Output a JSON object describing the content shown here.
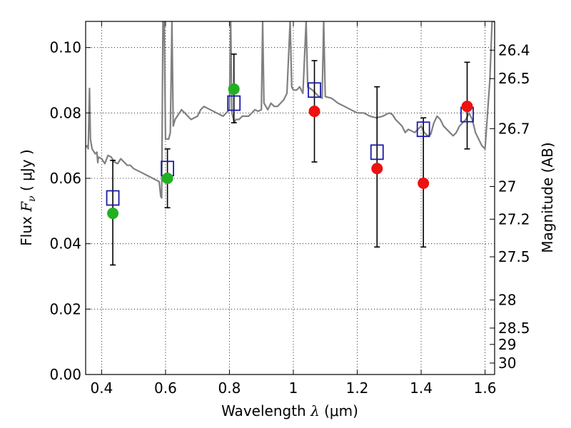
{
  "chart_data": {
    "type": "scatter",
    "title": "",
    "xlabel": {
      "prefix": "Wavelength",
      "symbol": "λ",
      "unit": "(μm)"
    },
    "ylabel": {
      "prefix": "Flux",
      "symbol": "F",
      "subscript": "ν",
      "unit": "( μJy )"
    },
    "y2label": "Magnitude (AB)",
    "xlim": [
      0.35,
      1.63
    ],
    "ylim": [
      0.0,
      0.108
    ],
    "grid": true,
    "x_ticks": [
      {
        "value": 0.4,
        "label": "0.4"
      },
      {
        "value": 0.6,
        "label": "0.6"
      },
      {
        "value": 0.8,
        "label": "0.8"
      },
      {
        "value": 1.0,
        "label": "1"
      },
      {
        "value": 1.2,
        "label": "1.2"
      },
      {
        "value": 1.4,
        "label": "1.4"
      },
      {
        "value": 1.6,
        "label": "1.6"
      }
    ],
    "y_ticks": [
      {
        "value": 0.0,
        "label": "0.00"
      },
      {
        "value": 0.02,
        "label": "0.02"
      },
      {
        "value": 0.04,
        "label": "0.04"
      },
      {
        "value": 0.06,
        "label": "0.06"
      },
      {
        "value": 0.08,
        "label": "0.08"
      },
      {
        "value": 0.1,
        "label": "0.10"
      }
    ],
    "y2_ticks": [
      {
        "flux": 0.0992,
        "label": "26.4"
      },
      {
        "flux": 0.0905,
        "label": "26.5"
      },
      {
        "flux": 0.0752,
        "label": "26.7"
      },
      {
        "flux": 0.0575,
        "label": "27"
      },
      {
        "flux": 0.0475,
        "label": "27.2"
      },
      {
        "flux": 0.036,
        "label": "27.5"
      },
      {
        "flux": 0.0228,
        "label": "28"
      },
      {
        "flux": 0.0142,
        "label": "28.5"
      },
      {
        "flux": 0.0092,
        "label": "29"
      },
      {
        "flux": 0.0035,
        "label": "30"
      }
    ],
    "series": [
      {
        "marker": "open-square",
        "color": "#1a1aaa",
        "points": [
          {
            "x": 0.435,
            "y": 0.054
          },
          {
            "x": 0.606,
            "y": 0.063
          },
          {
            "x": 0.814,
            "y": 0.083
          },
          {
            "x": 1.066,
            "y": 0.087
          },
          {
            "x": 1.262,
            "y": 0.068
          },
          {
            "x": 1.407,
            "y": 0.075
          },
          {
            "x": 1.544,
            "y": 0.0795
          }
        ]
      },
      {
        "marker": "filled-circle",
        "color": "#22b022",
        "points": [
          {
            "x": 0.435,
            "y": 0.0493
          },
          {
            "x": 0.606,
            "y": 0.06
          },
          {
            "x": 0.814,
            "y": 0.0873
          }
        ]
      },
      {
        "marker": "filled-circle",
        "color": "#ee1111",
        "points": [
          {
            "x": 1.066,
            "y": 0.0805
          },
          {
            "x": 1.262,
            "y": 0.063
          },
          {
            "x": 1.407,
            "y": 0.0585
          },
          {
            "x": 1.544,
            "y": 0.082
          }
        ]
      }
    ],
    "errorbars": [
      {
        "x": 0.435,
        "low": 0.0335,
        "high": 0.0655
      },
      {
        "x": 0.606,
        "low": 0.051,
        "high": 0.069
      },
      {
        "x": 0.814,
        "low": 0.077,
        "high": 0.098
      },
      {
        "x": 1.066,
        "low": 0.065,
        "high": 0.096
      },
      {
        "x": 1.262,
        "low": 0.039,
        "high": 0.088
      },
      {
        "x": 1.407,
        "low": 0.039,
        "high": 0.0785
      },
      {
        "x": 1.544,
        "low": 0.069,
        "high": 0.0955
      }
    ],
    "template_spectrum": {
      "color": "#808080",
      "points": [
        [
          0.35,
          0.0695
        ],
        [
          0.355,
          0.07
        ],
        [
          0.358,
          0.069
        ],
        [
          0.362,
          0.0875
        ],
        [
          0.365,
          0.072
        ],
        [
          0.37,
          0.069
        ],
        [
          0.38,
          0.0675
        ],
        [
          0.385,
          0.068
        ],
        [
          0.388,
          0.0648
        ],
        [
          0.39,
          0.0665
        ],
        [
          0.4,
          0.066
        ],
        [
          0.41,
          0.0645
        ],
        [
          0.42,
          0.067
        ],
        [
          0.43,
          0.0665
        ],
        [
          0.44,
          0.065
        ],
        [
          0.45,
          0.0645
        ],
        [
          0.46,
          0.066
        ],
        [
          0.47,
          0.065
        ],
        [
          0.48,
          0.064
        ],
        [
          0.49,
          0.064
        ],
        [
          0.5,
          0.063
        ],
        [
          0.52,
          0.062
        ],
        [
          0.54,
          0.061
        ],
        [
          0.56,
          0.06
        ],
        [
          0.57,
          0.0595
        ],
        [
          0.58,
          0.059
        ],
        [
          0.585,
          0.0545
        ],
        [
          0.588,
          0.054
        ],
        [
          0.592,
          0.108
        ],
        [
          0.596,
          0.108
        ],
        [
          0.6,
          0.072
        ],
        [
          0.61,
          0.072
        ],
        [
          0.615,
          0.074
        ],
        [
          0.62,
          0.108
        ],
        [
          0.624,
          0.076
        ],
        [
          0.63,
          0.078
        ],
        [
          0.65,
          0.081
        ],
        [
          0.66,
          0.08
        ],
        [
          0.68,
          0.078
        ],
        [
          0.7,
          0.079
        ],
        [
          0.71,
          0.081
        ],
        [
          0.72,
          0.082
        ],
        [
          0.74,
          0.081
        ],
        [
          0.76,
          0.08
        ],
        [
          0.78,
          0.079
        ],
        [
          0.79,
          0.08
        ],
        [
          0.8,
          0.081
        ],
        [
          0.804,
          0.108
        ],
        [
          0.808,
          0.08
        ],
        [
          0.815,
          0.077
        ],
        [
          0.82,
          0.078
        ],
        [
          0.83,
          0.078
        ],
        [
          0.84,
          0.079
        ],
        [
          0.85,
          0.079
        ],
        [
          0.86,
          0.079
        ],
        [
          0.87,
          0.08
        ],
        [
          0.88,
          0.081
        ],
        [
          0.89,
          0.0805
        ],
        [
          0.9,
          0.081
        ],
        [
          0.904,
          0.108
        ],
        [
          0.908,
          0.083
        ],
        [
          0.92,
          0.081
        ],
        [
          0.93,
          0.083
        ],
        [
          0.94,
          0.082
        ],
        [
          0.95,
          0.082
        ],
        [
          0.96,
          0.083
        ],
        [
          0.97,
          0.084
        ],
        [
          0.98,
          0.086
        ],
        [
          0.99,
          0.108
        ],
        [
          0.995,
          0.088
        ],
        [
          1.0,
          0.087
        ],
        [
          1.01,
          0.087
        ],
        [
          1.02,
          0.088
        ],
        [
          1.03,
          0.086
        ],
        [
          1.04,
          0.108
        ],
        [
          1.045,
          0.088
        ],
        [
          1.06,
          0.087
        ],
        [
          1.08,
          0.085
        ],
        [
          1.09,
          0.0845
        ],
        [
          1.095,
          0.108
        ],
        [
          1.1,
          0.085
        ],
        [
          1.12,
          0.0845
        ],
        [
          1.14,
          0.083
        ],
        [
          1.16,
          0.082
        ],
        [
          1.18,
          0.081
        ],
        [
          1.2,
          0.08
        ],
        [
          1.22,
          0.08
        ],
        [
          1.24,
          0.079
        ],
        [
          1.26,
          0.0785
        ],
        [
          1.28,
          0.079
        ],
        [
          1.3,
          0.08
        ],
        [
          1.31,
          0.0795
        ],
        [
          1.32,
          0.078
        ],
        [
          1.34,
          0.076
        ],
        [
          1.35,
          0.074
        ],
        [
          1.36,
          0.075
        ],
        [
          1.38,
          0.074
        ],
        [
          1.39,
          0.075
        ],
        [
          1.4,
          0.076
        ],
        [
          1.41,
          0.074
        ],
        [
          1.42,
          0.073
        ],
        [
          1.43,
          0.0735
        ],
        [
          1.44,
          0.077
        ],
        [
          1.45,
          0.079
        ],
        [
          1.46,
          0.078
        ],
        [
          1.47,
          0.076
        ],
        [
          1.48,
          0.075
        ],
        [
          1.49,
          0.074
        ],
        [
          1.5,
          0.073
        ],
        [
          1.51,
          0.074
        ],
        [
          1.52,
          0.076
        ],
        [
          1.53,
          0.077
        ],
        [
          1.54,
          0.078
        ],
        [
          1.55,
          0.08
        ],
        [
          1.56,
          0.078
        ],
        [
          1.57,
          0.074
        ],
        [
          1.58,
          0.072
        ],
        [
          1.59,
          0.07
        ],
        [
          1.6,
          0.069
        ],
        [
          1.605,
          0.076
        ],
        [
          1.615,
          0.09
        ],
        [
          1.622,
          0.108
        ],
        [
          1.63,
          0.108
        ]
      ]
    }
  }
}
